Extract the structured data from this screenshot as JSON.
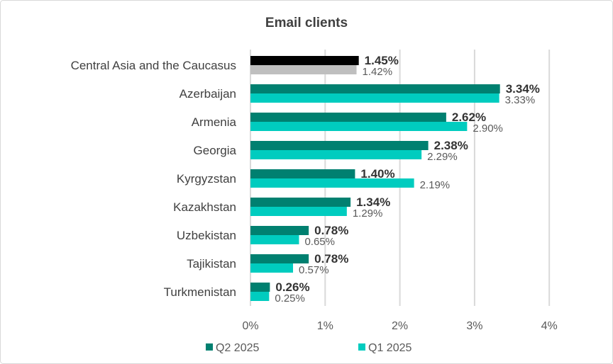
{
  "chart_data": {
    "type": "bar",
    "orientation": "horizontal",
    "title": "Email clients",
    "categories": [
      "Central Asia and the Caucasus",
      "Azerbaijan",
      "Armenia",
      "Georgia",
      "Kyrgyzstan",
      "Kazakhstan",
      "Uzbekistan",
      "Tajikistan",
      "Turkmenistan"
    ],
    "series": [
      {
        "name": "Q2 2025",
        "color": "#008070",
        "highlight_color": "#000000",
        "values": [
          1.45,
          3.34,
          2.62,
          2.38,
          1.4,
          1.34,
          0.78,
          0.78,
          0.26
        ],
        "labels": [
          "1.45%",
          "3.34%",
          "2.62%",
          "2.38%",
          "1.40%",
          "1.34%",
          "0.78%",
          "0.78%",
          "0.26%"
        ]
      },
      {
        "name": "Q1 2025",
        "color": "#00ccbf",
        "highlight_color": "#bfbfbf",
        "values": [
          1.42,
          3.33,
          2.9,
          2.29,
          2.19,
          1.29,
          0.65,
          0.57,
          0.25
        ],
        "labels": [
          "1.42%",
          "3.33%",
          "2.90%",
          "2.29%",
          "2.19%",
          "1.29%",
          "0.65%",
          "0.57%",
          "0.25%"
        ]
      }
    ],
    "xlim": [
      0,
      4
    ],
    "xticks": [
      0,
      1,
      2,
      3,
      4
    ],
    "xtick_labels": [
      "0%",
      "1%",
      "2%",
      "3%",
      "4%"
    ],
    "xlabel": "",
    "ylabel": "",
    "grid": "vertical",
    "legend": "bottom"
  }
}
